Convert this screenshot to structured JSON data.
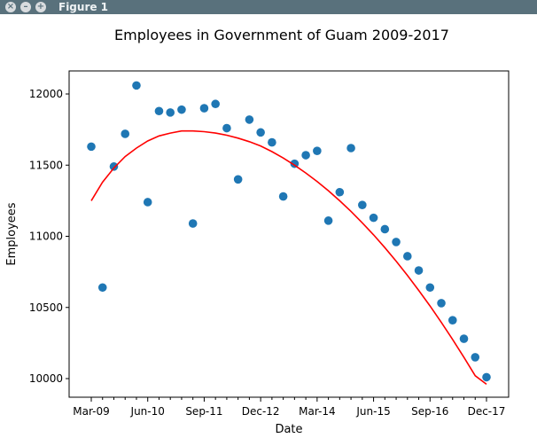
{
  "window": {
    "title": "Figure 1",
    "buttons": [
      "close",
      "minimize",
      "maximize"
    ]
  },
  "chart_data": {
    "type": "scatter",
    "title": "Employees in Government of Guam 2009-2017",
    "xlabel": "Date",
    "ylabel": "Employees",
    "x_ticklabels": [
      "Mar-09",
      "Jun-10",
      "Sep-11",
      "Dec-12",
      "Mar-14",
      "Jun-15",
      "Sep-16",
      "Dec-17"
    ],
    "y_ticks": [
      10000,
      10500,
      11000,
      11500,
      12000
    ],
    "ylim": [
      9920,
      12210
    ],
    "grid": false,
    "colors": {
      "points": "#1f77b4",
      "fit": "#ff0000"
    },
    "series": [
      {
        "type": "scatter",
        "x": [
          "Mar-09",
          "Jun-09",
          "Sep-09",
          "Dec-09",
          "Mar-10",
          "Jun-10",
          "Sep-10",
          "Dec-10",
          "Mar-11",
          "Jun-11",
          "Sep-11",
          "Dec-11",
          "Mar-12",
          "Jun-12",
          "Sep-12",
          "Dec-12",
          "Mar-13",
          "Jun-13",
          "Sep-13",
          "Dec-13",
          "Mar-14",
          "Jun-14",
          "Sep-14",
          "Dec-14",
          "Mar-15",
          "Jun-15",
          "Sep-15",
          "Dec-15",
          "Mar-16",
          "Jun-16",
          "Sep-16",
          "Dec-16",
          "Mar-17",
          "Jun-17",
          "Sep-17",
          "Dec-17"
        ],
        "values": [
          11630,
          10640,
          11490,
          11720,
          12060,
          11240,
          11880,
          11870,
          11890,
          11090,
          11900,
          11930,
          11760,
          11400,
          11820,
          11730,
          11660,
          11280,
          11510,
          11570,
          11600,
          11110,
          11310,
          11620,
          11220,
          11130,
          11050,
          10960,
          10860,
          10760,
          10640,
          10530,
          10410,
          10280,
          10150,
          10010
        ]
      },
      {
        "type": "line",
        "x": [
          "Mar-09",
          "Jun-09",
          "Sep-09",
          "Dec-09",
          "Mar-10",
          "Jun-10",
          "Sep-10",
          "Dec-10",
          "Mar-11",
          "Jun-11",
          "Sep-11",
          "Dec-11",
          "Mar-12",
          "Jun-12",
          "Sep-12",
          "Dec-12",
          "Mar-13",
          "Jun-13",
          "Sep-13",
          "Dec-13",
          "Mar-14",
          "Jun-14",
          "Sep-14",
          "Dec-14",
          "Mar-15",
          "Jun-15",
          "Sep-15",
          "Dec-15",
          "Mar-16",
          "Jun-16",
          "Sep-16",
          "Dec-16",
          "Mar-17",
          "Jun-17",
          "Sep-17",
          "Dec-17"
        ],
        "values": [
          11250,
          11380,
          11480,
          11560,
          11620,
          11670,
          11705,
          11725,
          11740,
          11740,
          11735,
          11725,
          11710,
          11690,
          11665,
          11635,
          11595,
          11550,
          11500,
          11445,
          11385,
          11320,
          11250,
          11175,
          11095,
          11010,
          10920,
          10825,
          10725,
          10620,
          10510,
          10395,
          10275,
          10150,
          10020,
          9960
        ]
      }
    ]
  }
}
